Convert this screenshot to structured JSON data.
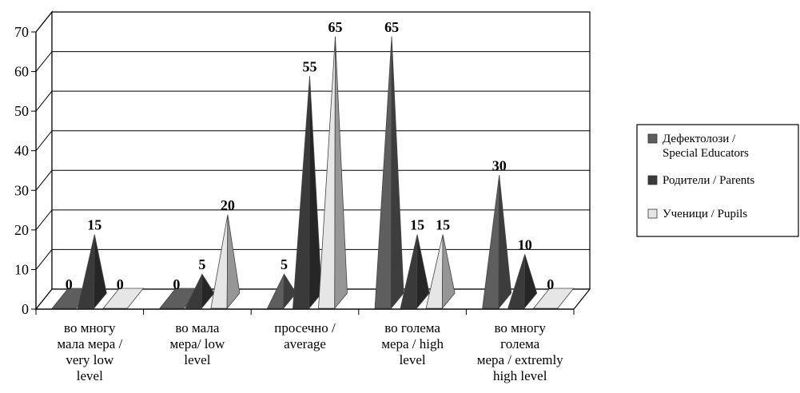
{
  "chart_data": {
    "type": "bar",
    "style": "3d-cone",
    "categories": [
      [
        "во многу",
        "мала мера /",
        "very low",
        "level"
      ],
      [
        "во мала",
        "мера/ low",
        "level"
      ],
      [
        "просечно /",
        "average"
      ],
      [
        "во голема",
        "мера / high",
        "level"
      ],
      [
        "во многу",
        "голема",
        "мера / extremly",
        "high level"
      ]
    ],
    "series": [
      {
        "name": [
          "Дефектолози /",
          "Special Educators"
        ],
        "values": [
          0,
          0,
          5,
          65,
          30
        ],
        "color": "#5e5e5e"
      },
      {
        "name": [
          "Родители / Parents"
        ],
        "values": [
          15,
          5,
          55,
          15,
          10
        ],
        "color": "#3a3a3a"
      },
      {
        "name": [
          "Ученици / Pupils"
        ],
        "values": [
          0,
          20,
          65,
          15,
          0
        ],
        "color": "#e6e6e6"
      }
    ],
    "ylim": [
      0,
      70
    ],
    "yticks": [
      "0",
      "10",
      "20",
      "30",
      "40",
      "50",
      "60",
      "70"
    ],
    "grid": true,
    "legend": "right"
  }
}
